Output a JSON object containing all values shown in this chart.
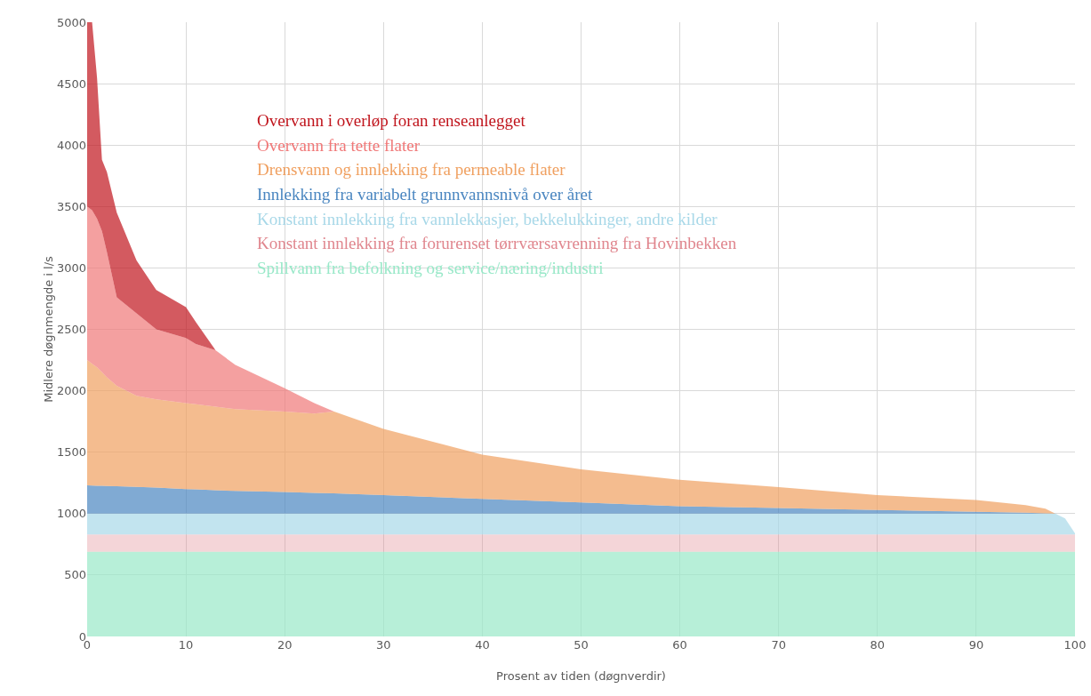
{
  "chart_data": {
    "type": "area",
    "stacked": true,
    "xlabel": "Prosent av tiden (døgnverdir)",
    "ylabel": "Midlere døgnmengde i l/s",
    "x": [
      0,
      0.5,
      1,
      1.5,
      2,
      3,
      5,
      7,
      10,
      11,
      13,
      15,
      20,
      23,
      25,
      30,
      40,
      50,
      60,
      70,
      80,
      90,
      95,
      97,
      98,
      99,
      100
    ],
    "series": [
      {
        "name": "Spillvann fra befolkning og service/næring/industri",
        "color": "#98e8c8",
        "values": [
          690,
          690,
          690,
          690,
          690,
          690,
          690,
          690,
          690,
          690,
          690,
          690,
          690,
          690,
          690,
          690,
          690,
          690,
          690,
          690,
          690,
          690,
          690,
          690,
          690,
          690,
          690
        ]
      },
      {
        "name": "Konstant innlekking fra forurenset tørrværsavrenning fra Hovinbekken",
        "color": "#e0868e",
        "values": [
          140,
          140,
          140,
          140,
          140,
          140,
          140,
          140,
          140,
          140,
          140,
          140,
          140,
          140,
          140,
          140,
          140,
          140,
          140,
          140,
          140,
          140,
          140,
          140,
          140,
          140,
          140
        ]
      },
      {
        "name": "Konstant innlekking fra vannlekkasjer, bekkelukkinger, andre kilder",
        "color": "#a8d8e8",
        "values": [
          170,
          170,
          170,
          170,
          170,
          170,
          170,
          170,
          170,
          170,
          170,
          170,
          170,
          170,
          170,
          170,
          170,
          170,
          170,
          170,
          170,
          170,
          170,
          170,
          170,
          130,
          10
        ]
      },
      {
        "name": "Innlekking fra variabelt grunnvannsnivå over året",
        "color": "#4a86c0",
        "values": [
          230,
          228,
          227,
          226,
          225,
          222,
          218,
          212,
          200,
          197,
          190,
          185,
          175,
          168,
          165,
          150,
          120,
          90,
          60,
          45,
          30,
          15,
          8,
          3,
          0,
          0,
          0
        ]
      },
      {
        "name": "Drensvann og innlekking fra permeable flater",
        "color": "#f0a060",
        "values": [
          1020,
          992,
          963,
          924,
          885,
          818,
          742,
          718,
          700,
          693,
          680,
          665,
          655,
          647,
          665,
          540,
          360,
          270,
          215,
          170,
          120,
          95,
          62,
          37,
          0,
          0,
          0
        ]
      },
      {
        "name": "Overvann fra tette flater",
        "color": "#f07878",
        "values": [
          1250,
          1250,
          1210,
          1150,
          1020,
          720,
          670,
          570,
          530,
          490,
          460,
          360,
          190,
          85,
          0,
          0,
          0,
          0,
          0,
          0,
          0,
          0,
          0,
          0,
          0,
          0,
          0
        ]
      },
      {
        "name": "Overvann i overløp foran renseanlegget",
        "color": "#c0141c",
        "values": [
          1500,
          1530,
          1150,
          580,
          650,
          690,
          430,
          320,
          250,
          180,
          0,
          0,
          0,
          0,
          0,
          0,
          0,
          0,
          0,
          0,
          0,
          0,
          0,
          0,
          0,
          0,
          0
        ]
      }
    ],
    "xlim": [
      0,
      100
    ],
    "xticks": [
      0,
      10,
      20,
      30,
      40,
      50,
      60,
      70,
      80,
      90,
      100
    ],
    "ylim": [
      0,
      5000
    ],
    "yticks": [
      0,
      500,
      1000,
      1500,
      2000,
      2500,
      3000,
      3500,
      4000,
      4500,
      5000
    ],
    "grid": true,
    "legend": "top left"
  }
}
